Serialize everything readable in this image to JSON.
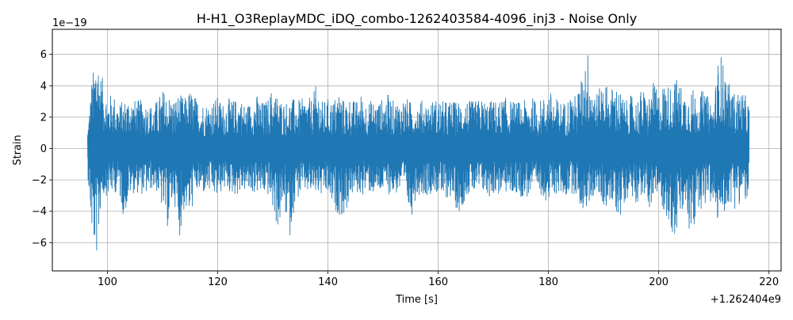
{
  "chart_data": {
    "type": "line",
    "title": "H-H1_O3ReplayMDC_iDQ_combo-1262403584-4096_inj3 - Noise Only",
    "xlabel": "Time [s]",
    "ylabel": "Strain",
    "x_offset_label": "+1.262404e9",
    "y_exponent_label": "1e−19",
    "xlim": [
      90.0,
      222.2
    ],
    "ylim": [
      -7.8,
      7.6
    ],
    "x_ticks": [
      100,
      120,
      140,
      160,
      180,
      200,
      220
    ],
    "x_tick_labels": [
      "100",
      "120",
      "140",
      "160",
      "180",
      "200",
      "220"
    ],
    "y_ticks": [
      -6,
      -4,
      -2,
      0,
      2,
      4,
      6
    ],
    "y_tick_labels": [
      "−6",
      "−4",
      "−2",
      "0",
      "2",
      "4",
      "6"
    ],
    "grid": true,
    "series": [
      {
        "color": "#1f77b4",
        "x_start": 96.4,
        "x_end": 216.4,
        "min": -7.0,
        "max": 6.9,
        "envelope": [
          [
            96.4,
            -1.5,
            1.3
          ],
          [
            96.8,
            -3.8,
            2.9
          ],
          [
            97.2,
            -5.7,
            4.7
          ],
          [
            97.6,
            -6.5,
            5.2
          ],
          [
            98.0,
            -7.0,
            6.9
          ],
          [
            98.4,
            -6.0,
            5.8
          ],
          [
            98.8,
            -3.5,
            4.8
          ],
          [
            99.4,
            -3.0,
            4.2
          ],
          [
            100.0,
            -3.0,
            3.3
          ],
          [
            101.0,
            -2.9,
            3.6
          ],
          [
            102.0,
            -2.7,
            2.9
          ],
          [
            103.0,
            -4.5,
            3.1
          ],
          [
            104.0,
            -3.0,
            3.4
          ],
          [
            105.0,
            -2.8,
            3.1
          ],
          [
            106.0,
            -2.9,
            3.1
          ],
          [
            107.0,
            -3.0,
            3.0
          ],
          [
            108.0,
            -2.6,
            2.8
          ],
          [
            109.0,
            -2.8,
            3.1
          ],
          [
            110.0,
            -4.0,
            3.8
          ],
          [
            111.0,
            -5.2,
            3.5
          ],
          [
            112.0,
            -3.0,
            3.2
          ],
          [
            113.0,
            -5.8,
            3.5
          ],
          [
            114.0,
            -3.8,
            3.2
          ],
          [
            115.0,
            -4.5,
            3.8
          ],
          [
            116.0,
            -2.8,
            3.3
          ],
          [
            117.0,
            -3.0,
            3.0
          ],
          [
            118.0,
            -2.8,
            2.9
          ],
          [
            119.0,
            -3.0,
            3.1
          ],
          [
            120.0,
            -3.2,
            3.3
          ],
          [
            121.0,
            -2.6,
            2.9
          ],
          [
            122.0,
            -2.8,
            3.2
          ],
          [
            123.0,
            -3.0,
            3.1
          ],
          [
            124.0,
            -2.9,
            3.3
          ],
          [
            125.0,
            -2.7,
            2.8
          ],
          [
            126.0,
            -3.0,
            3.0
          ],
          [
            127.0,
            -2.8,
            3.5
          ],
          [
            128.0,
            -3.0,
            3.0
          ],
          [
            129.0,
            -2.9,
            3.1
          ],
          [
            130.0,
            -4.0,
            4.0
          ],
          [
            131.0,
            -5.3,
            3.3
          ],
          [
            132.0,
            -3.6,
            3.0
          ],
          [
            133.0,
            -5.9,
            3.1
          ],
          [
            134.0,
            -3.5,
            3.2
          ],
          [
            135.0,
            -3.0,
            3.1
          ],
          [
            136.0,
            -2.8,
            3.3
          ],
          [
            137.0,
            -3.0,
            3.2
          ],
          [
            138.0,
            -2.9,
            4.2
          ],
          [
            139.0,
            -3.2,
            3.0
          ],
          [
            140.0,
            -3.0,
            3.2
          ],
          [
            141.0,
            -4.0,
            3.1
          ],
          [
            142.0,
            -4.2,
            3.8
          ],
          [
            143.0,
            -4.5,
            3.0
          ],
          [
            144.0,
            -3.1,
            3.3
          ],
          [
            145.0,
            -2.9,
            3.0
          ],
          [
            146.0,
            -3.0,
            3.5
          ],
          [
            147.0,
            -2.8,
            3.0
          ],
          [
            148.0,
            -2.9,
            3.1
          ],
          [
            149.0,
            -3.0,
            3.0
          ],
          [
            150.0,
            -2.8,
            3.2
          ],
          [
            151.0,
            -2.9,
            3.5
          ],
          [
            152.0,
            -3.0,
            3.0
          ],
          [
            153.0,
            -2.8,
            3.1
          ],
          [
            154.0,
            -3.0,
            3.3
          ],
          [
            155.0,
            -4.6,
            3.0
          ],
          [
            156.0,
            -3.0,
            3.0
          ],
          [
            157.0,
            -2.9,
            3.1
          ],
          [
            158.0,
            -3.0,
            3.0
          ],
          [
            159.0,
            -2.8,
            3.1
          ],
          [
            160.0,
            -2.9,
            3.2
          ],
          [
            161.0,
            -3.5,
            3.0
          ],
          [
            162.0,
            -3.0,
            3.1
          ],
          [
            163.0,
            -3.7,
            3.0
          ],
          [
            164.0,
            -4.2,
            3.1
          ],
          [
            165.0,
            -3.0,
            3.2
          ],
          [
            166.0,
            -2.9,
            3.0
          ],
          [
            167.0,
            -3.0,
            3.1
          ],
          [
            168.0,
            -2.8,
            3.2
          ],
          [
            169.0,
            -3.2,
            3.0
          ],
          [
            170.0,
            -2.9,
            3.1
          ],
          [
            171.0,
            -3.0,
            3.0
          ],
          [
            172.0,
            -2.8,
            3.3
          ],
          [
            173.0,
            -3.0,
            3.1
          ],
          [
            174.0,
            -2.9,
            3.0
          ],
          [
            175.0,
            -3.1,
            3.0
          ],
          [
            176.0,
            -3.2,
            3.1
          ],
          [
            177.0,
            -2.8,
            3.3
          ],
          [
            178.0,
            -3.0,
            3.0
          ],
          [
            179.0,
            -3.0,
            3.2
          ],
          [
            180.0,
            -3.6,
            3.8
          ],
          [
            181.0,
            -3.0,
            3.3
          ],
          [
            182.0,
            -2.9,
            3.1
          ],
          [
            183.0,
            -3.2,
            3.0
          ],
          [
            184.0,
            -2.8,
            3.5
          ],
          [
            185.0,
            -3.0,
            3.4
          ],
          [
            186.0,
            -4.0,
            4.5
          ],
          [
            187.0,
            -3.9,
            6.6
          ],
          [
            188.0,
            -3.1,
            4.4
          ],
          [
            189.0,
            -3.0,
            3.5
          ],
          [
            190.0,
            -3.8,
            4.8
          ],
          [
            191.0,
            -3.5,
            3.6
          ],
          [
            192.0,
            -4.0,
            4.2
          ],
          [
            193.0,
            -4.4,
            3.7
          ],
          [
            194.0,
            -3.2,
            3.0
          ],
          [
            195.0,
            -3.0,
            3.4
          ],
          [
            196.0,
            -3.5,
            3.2
          ],
          [
            197.0,
            -3.0,
            3.9
          ],
          [
            198.0,
            -3.8,
            3.2
          ],
          [
            199.0,
            -3.6,
            4.2
          ],
          [
            200.0,
            -3.0,
            3.6
          ],
          [
            201.0,
            -4.1,
            4.3
          ],
          [
            202.0,
            -5.2,
            4.0
          ],
          [
            203.0,
            -5.8,
            4.6
          ],
          [
            204.0,
            -4.5,
            4.1
          ],
          [
            205.0,
            -4.1,
            3.6
          ],
          [
            206.0,
            -6.7,
            3.9
          ],
          [
            207.0,
            -3.6,
            3.5
          ],
          [
            208.0,
            -4.0,
            3.7
          ],
          [
            209.0,
            -3.2,
            3.3
          ],
          [
            210.0,
            -4.1,
            3.1
          ],
          [
            211.0,
            -5.0,
            6.4
          ],
          [
            212.0,
            -4.0,
            5.1
          ],
          [
            213.0,
            -3.5,
            3.9
          ],
          [
            214.0,
            -3.9,
            3.5
          ],
          [
            215.0,
            -3.3,
            3.8
          ],
          [
            216.0,
            -3.5,
            3.2
          ],
          [
            216.4,
            -3.0,
            3.0
          ]
        ]
      }
    ]
  }
}
